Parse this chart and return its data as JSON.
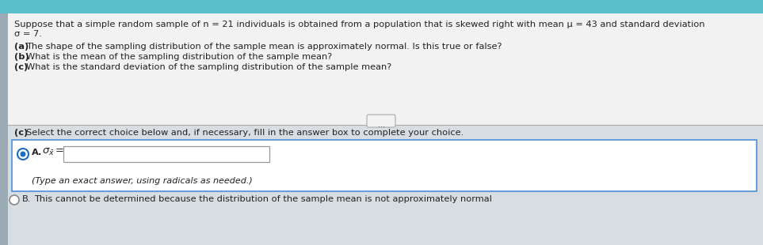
{
  "bg_top_color": "#5bbecb",
  "bg_upper_color": "#e8edf0",
  "bg_lower_color": "#d8dde2",
  "text_color": "#222222",
  "title_line1": "Suppose that a simple random sample of n = 21 individuals is obtained from a population that is skewed right with mean μ = 43 and standard deviation",
  "title_line2": "σ = 7.",
  "question_a": "(a) The shape of the sampling distribution of the sample mean is approximately normal. Is this true or false?",
  "question_b": "(b) What is the mean of the sampling distribution of the sample mean?",
  "question_c1": "(c) What is the standard deviation of the sampling distribution of the sample mean?",
  "separator_dots": "⋯",
  "question_c2_bold": "(c)",
  "question_c2_rest": " Select the correct choice below and, if necessary, fill in the answer box to complete your choice.",
  "choice_a_label": "A.",
  "choice_a_hint": "(Type an exact answer, using radicals as needed.)",
  "choice_b_text": "B.  This cannot be determined because the distribution of the sample mean is not approximately normal",
  "radio_color_selected": "#1a6fc4",
  "radio_color_unselected": "#888888",
  "box_border_color": "#4a90d9",
  "box_fill_color": "#ffffff",
  "input_box_color": "#ffffff",
  "left_tab_color": "#9aabb5",
  "separator_line_color": "#aaaaaa",
  "figwidth": 9.63,
  "figheight": 3.1,
  "dpi": 100
}
